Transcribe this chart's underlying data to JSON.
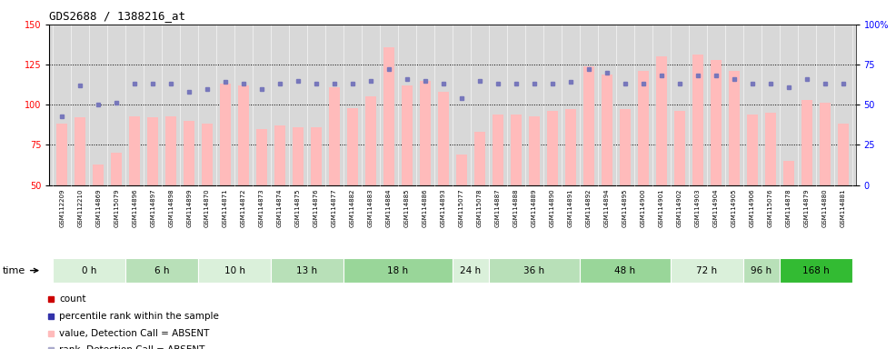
{
  "title": "GDS2688 / 1388216_at",
  "samples": [
    "GSM112209",
    "GSM112210",
    "GSM114869",
    "GSM115079",
    "GSM114896",
    "GSM114897",
    "GSM114898",
    "GSM114899",
    "GSM114870",
    "GSM114871",
    "GSM114872",
    "GSM114873",
    "GSM114874",
    "GSM114875",
    "GSM114876",
    "GSM114877",
    "GSM114882",
    "GSM114883",
    "GSM114884",
    "GSM114885",
    "GSM114886",
    "GSM114893",
    "GSM115077",
    "GSM115078",
    "GSM114887",
    "GSM114888",
    "GSM114889",
    "GSM114890",
    "GSM114891",
    "GSM114892",
    "GSM114894",
    "GSM114895",
    "GSM114900",
    "GSM114901",
    "GSM114902",
    "GSM114903",
    "GSM114904",
    "GSM114905",
    "GSM114906",
    "GSM115076",
    "GSM114878",
    "GSM114879",
    "GSM114880",
    "GSM114881"
  ],
  "bar_values": [
    88,
    92,
    63,
    70,
    93,
    92,
    93,
    90,
    88,
    113,
    112,
    85,
    87,
    86,
    86,
    111,
    98,
    105,
    136,
    112,
    115,
    108,
    69,
    83,
    94,
    94,
    93,
    96,
    97,
    124,
    119,
    97,
    121,
    130,
    96,
    131,
    128,
    121,
    94,
    95,
    65,
    103,
    101,
    88
  ],
  "rank_values_left": [
    93,
    112,
    100,
    101,
    113,
    113,
    113,
    108,
    110,
    114,
    113,
    110,
    113,
    115,
    113,
    113,
    113,
    115,
    122,
    116,
    115,
    113,
    104,
    115,
    113,
    113,
    113,
    113,
    114,
    122,
    120,
    113,
    113,
    118,
    113,
    118,
    118,
    116,
    113,
    113,
    111,
    116,
    113,
    113
  ],
  "time_groups": [
    {
      "label": "0 h",
      "start": 0,
      "end": 4,
      "color": "#daf0da"
    },
    {
      "label": "6 h",
      "start": 4,
      "end": 8,
      "color": "#b8e0b8"
    },
    {
      "label": "10 h",
      "start": 8,
      "end": 12,
      "color": "#daf0da"
    },
    {
      "label": "13 h",
      "start": 12,
      "end": 16,
      "color": "#b8e0b8"
    },
    {
      "label": "18 h",
      "start": 16,
      "end": 22,
      "color": "#99d699"
    },
    {
      "label": "24 h",
      "start": 22,
      "end": 24,
      "color": "#daf0da"
    },
    {
      "label": "36 h",
      "start": 24,
      "end": 29,
      "color": "#b8e0b8"
    },
    {
      "label": "48 h",
      "start": 29,
      "end": 34,
      "color": "#99d699"
    },
    {
      "label": "72 h",
      "start": 34,
      "end": 38,
      "color": "#daf0da"
    },
    {
      "label": "96 h",
      "start": 38,
      "end": 40,
      "color": "#b8e0b8"
    },
    {
      "label": "168 h",
      "start": 40,
      "end": 44,
      "color": "#33bb33"
    }
  ],
  "ylim_left": [
    50,
    150
  ],
  "ylim_right": [
    0,
    100
  ],
  "yticks_left": [
    50,
    75,
    100,
    125,
    150
  ],
  "yticks_right": [
    0,
    25,
    50,
    75,
    100
  ],
  "dotted_lines": [
    75,
    100,
    125
  ],
  "bar_color": "#ffbbbb",
  "rank_color": "#7777bb",
  "bar_base": 50,
  "bg_color": "#d8d8d8",
  "legend_labels": [
    "count",
    "percentile rank within the sample",
    "value, Detection Call = ABSENT",
    "rank, Detection Call = ABSENT"
  ],
  "legend_colors": [
    "#cc0000",
    "#3333aa",
    "#ffbbbb",
    "#aaaacc"
  ]
}
